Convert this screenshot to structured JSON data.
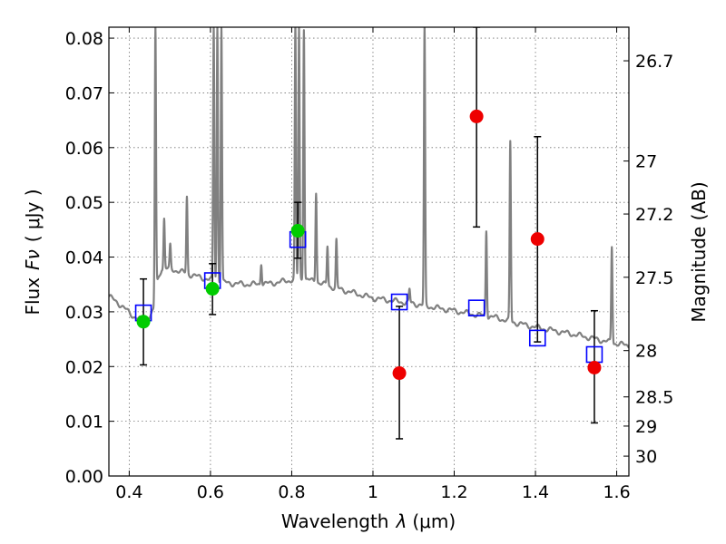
{
  "chart_data": {
    "type": "scatter",
    "xlabel": "Wavelength",
    "xlabel_symbol": "λ",
    "xlabel_unit": "(μm)",
    "ylabel": "Flux",
    "ylabel_symbol": "Fν",
    "ylabel_unit": "( μJy )",
    "y2label": "Magnitude (AB)",
    "xlim": [
      0.35,
      1.63
    ],
    "ylim": [
      0.0,
      0.082
    ],
    "grid": true,
    "x_ticks": [
      {
        "value": 0.4,
        "label": "0.4"
      },
      {
        "value": 0.6,
        "label": "0.6"
      },
      {
        "value": 0.8,
        "label": "0.8"
      },
      {
        "value": 1.0,
        "label": "1"
      },
      {
        "value": 1.2,
        "label": "1.2"
      },
      {
        "value": 1.4,
        "label": "1.4"
      },
      {
        "value": 1.6,
        "label": "1.6"
      }
    ],
    "y_ticks": [
      {
        "value": 0.0,
        "label": "0.00"
      },
      {
        "value": 0.01,
        "label": "0.01"
      },
      {
        "value": 0.02,
        "label": "0.02"
      },
      {
        "value": 0.03,
        "label": "0.03"
      },
      {
        "value": 0.04,
        "label": "0.04"
      },
      {
        "value": 0.05,
        "label": "0.05"
      },
      {
        "value": 0.06,
        "label": "0.06"
      },
      {
        "value": 0.07,
        "label": "0.07"
      },
      {
        "value": 0.08,
        "label": "0.08"
      }
    ],
    "y2_ticks": [
      {
        "magnitude": 26.7,
        "label": "26.7"
      },
      {
        "magnitude": 27.0,
        "label": "27"
      },
      {
        "magnitude": 27.2,
        "label": "27.2"
      },
      {
        "magnitude": 27.5,
        "label": "27.5"
      },
      {
        "magnitude": 28.0,
        "label": "28"
      },
      {
        "magnitude": 28.5,
        "label": "28.5"
      },
      {
        "magnitude": 29.0,
        "label": "29"
      },
      {
        "magnitude": 30.0,
        "label": "30"
      }
    ],
    "template_spectrum": {
      "color": "#808080",
      "continuum": [
        [
          0.35,
          0.0328
        ],
        [
          0.37,
          0.0318
        ],
        [
          0.39,
          0.0305
        ],
        [
          0.41,
          0.0292
        ],
        [
          0.43,
          0.0285
        ],
        [
          0.45,
          0.0292
        ],
        [
          0.46,
          0.0302
        ],
        [
          0.465,
          0.0345
        ],
        [
          0.48,
          0.038
        ],
        [
          0.5,
          0.0378
        ],
        [
          0.52,
          0.0375
        ],
        [
          0.55,
          0.0368
        ],
        [
          0.58,
          0.0362
        ],
        [
          0.62,
          0.0355
        ],
        [
          0.65,
          0.0352
        ],
        [
          0.7,
          0.035
        ],
        [
          0.75,
          0.0352
        ],
        [
          0.8,
          0.0358
        ],
        [
          0.83,
          0.036
        ],
        [
          0.86,
          0.0355
        ],
        [
          0.9,
          0.0345
        ],
        [
          0.95,
          0.0335
        ],
        [
          1.0,
          0.0325
        ],
        [
          1.05,
          0.032
        ],
        [
          1.1,
          0.0315
        ],
        [
          1.15,
          0.0308
        ],
        [
          1.2,
          0.0302
        ],
        [
          1.25,
          0.0295
        ],
        [
          1.3,
          0.029
        ],
        [
          1.35,
          0.028
        ],
        [
          1.4,
          0.0272
        ],
        [
          1.45,
          0.0265
        ],
        [
          1.5,
          0.0258
        ],
        [
          1.55,
          0.025
        ],
        [
          1.58,
          0.0245
        ],
        [
          1.6,
          0.0242
        ],
        [
          1.63,
          0.0238
        ]
      ],
      "emission_lines": [
        {
          "x": 0.4645,
          "peak": 0.082
        },
        {
          "x": 0.486,
          "peak": 0.047
        },
        {
          "x": 0.501,
          "peak": 0.042
        },
        {
          "x": 0.542,
          "peak": 0.051
        },
        {
          "x": 0.608,
          "peak": 0.082
        },
        {
          "x": 0.617,
          "peak": 0.082
        },
        {
          "x": 0.627,
          "peak": 0.082
        },
        {
          "x": 0.725,
          "peak": 0.039
        },
        {
          "x": 0.809,
          "peak": 0.082
        },
        {
          "x": 0.818,
          "peak": 0.082
        },
        {
          "x": 0.83,
          "peak": 0.082
        },
        {
          "x": 0.86,
          "peak": 0.052
        },
        {
          "x": 0.888,
          "peak": 0.042
        },
        {
          "x": 0.91,
          "peak": 0.043
        },
        {
          "x": 1.09,
          "peak": 0.034
        },
        {
          "x": 1.127,
          "peak": 0.082
        },
        {
          "x": 1.279,
          "peak": 0.045
        },
        {
          "x": 1.338,
          "peak": 0.061
        },
        {
          "x": 1.588,
          "peak": 0.042
        }
      ]
    },
    "series": [
      {
        "marker": "open-square",
        "color": "#0000ff",
        "points": [
          {
            "x": 0.435,
            "y": 0.0298
          },
          {
            "x": 0.605,
            "y": 0.0357
          },
          {
            "x": 0.815,
            "y": 0.0432
          },
          {
            "x": 1.065,
            "y": 0.0318
          },
          {
            "x": 1.255,
            "y": 0.0307
          },
          {
            "x": 1.405,
            "y": 0.0252
          },
          {
            "x": 1.545,
            "y": 0.0222
          }
        ]
      },
      {
        "marker": "filled-circle",
        "color": "#00cc00",
        "points": [
          {
            "x": 0.435,
            "y": 0.0282,
            "err_low": 0.0203,
            "err_high": 0.036
          },
          {
            "x": 0.605,
            "y": 0.0342,
            "err_low": 0.0295,
            "err_high": 0.0388
          },
          {
            "x": 0.815,
            "y": 0.0448,
            "err_low": 0.0398,
            "err_high": 0.05
          }
        ]
      },
      {
        "marker": "filled-circle",
        "color": "#ee0000",
        "points": [
          {
            "x": 1.065,
            "y": 0.0188,
            "err_low": 0.0068,
            "err_high": 0.031
          },
          {
            "x": 1.255,
            "y": 0.0657,
            "err_low": 0.0455,
            "err_high": 0.082
          },
          {
            "x": 1.405,
            "y": 0.0433,
            "err_low": 0.0245,
            "err_high": 0.062
          },
          {
            "x": 1.545,
            "y": 0.0198,
            "err_low": 0.0097,
            "err_high": 0.0302
          }
        ]
      }
    ]
  }
}
